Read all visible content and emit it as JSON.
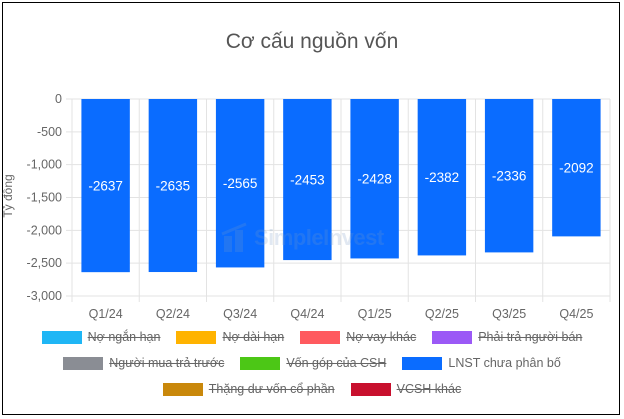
{
  "chart_data": {
    "type": "bar",
    "title": "Cơ cấu nguồn vốn",
    "ylabel": "Tỷ đồng",
    "xlabel": "",
    "categories": [
      "Q1/24",
      "Q2/24",
      "Q3/24",
      "Q4/24",
      "Q1/25",
      "Q2/25",
      "Q3/25",
      "Q4/25"
    ],
    "ylim": [
      -3000,
      0
    ],
    "yticks": [
      0,
      -500,
      -1000,
      -1500,
      -2000,
      -2500,
      -3000
    ],
    "ytick_labels": [
      "0",
      "-500",
      "-1,000",
      "-1,500",
      "-2,000",
      "-2,500",
      "-3,000"
    ],
    "grid": true,
    "legend_position": "bottom",
    "series": [
      {
        "name": "LNST chưa phân bố",
        "color": "#0a6cff",
        "values": [
          -2637,
          -2635,
          -2565,
          -2453,
          -2428,
          -2382,
          -2336,
          -2092
        ],
        "data_labels": [
          "-2637",
          "-2635",
          "-2565",
          "-2453",
          "-2428",
          "-2382",
          "-2336",
          "-2092"
        ]
      }
    ],
    "legend": [
      {
        "name": "Nợ ngắn hạn",
        "color": "#1fb6f5",
        "hidden": true
      },
      {
        "name": "Nợ dài hạn",
        "color": "#ffb300",
        "hidden": true
      },
      {
        "name": "Nợ vay khác",
        "color": "#ff5a5f",
        "hidden": true
      },
      {
        "name": "Phải trả người bán",
        "color": "#9b59f6",
        "hidden": true
      },
      {
        "name": "Người mua trả trước",
        "color": "#8a8d94",
        "hidden": true
      },
      {
        "name": "Vốn góp của CSH",
        "color": "#4cc716",
        "hidden": true
      },
      {
        "name": "LNST chưa phân bố",
        "color": "#0a6cff",
        "hidden": false
      },
      {
        "name": "Thặng dư vốn cổ phần",
        "color": "#c9880b",
        "hidden": true
      },
      {
        "name": "VCSH khác",
        "color": "#c8102e",
        "hidden": true
      }
    ]
  },
  "watermark": {
    "text": "SimpleInvest"
  }
}
